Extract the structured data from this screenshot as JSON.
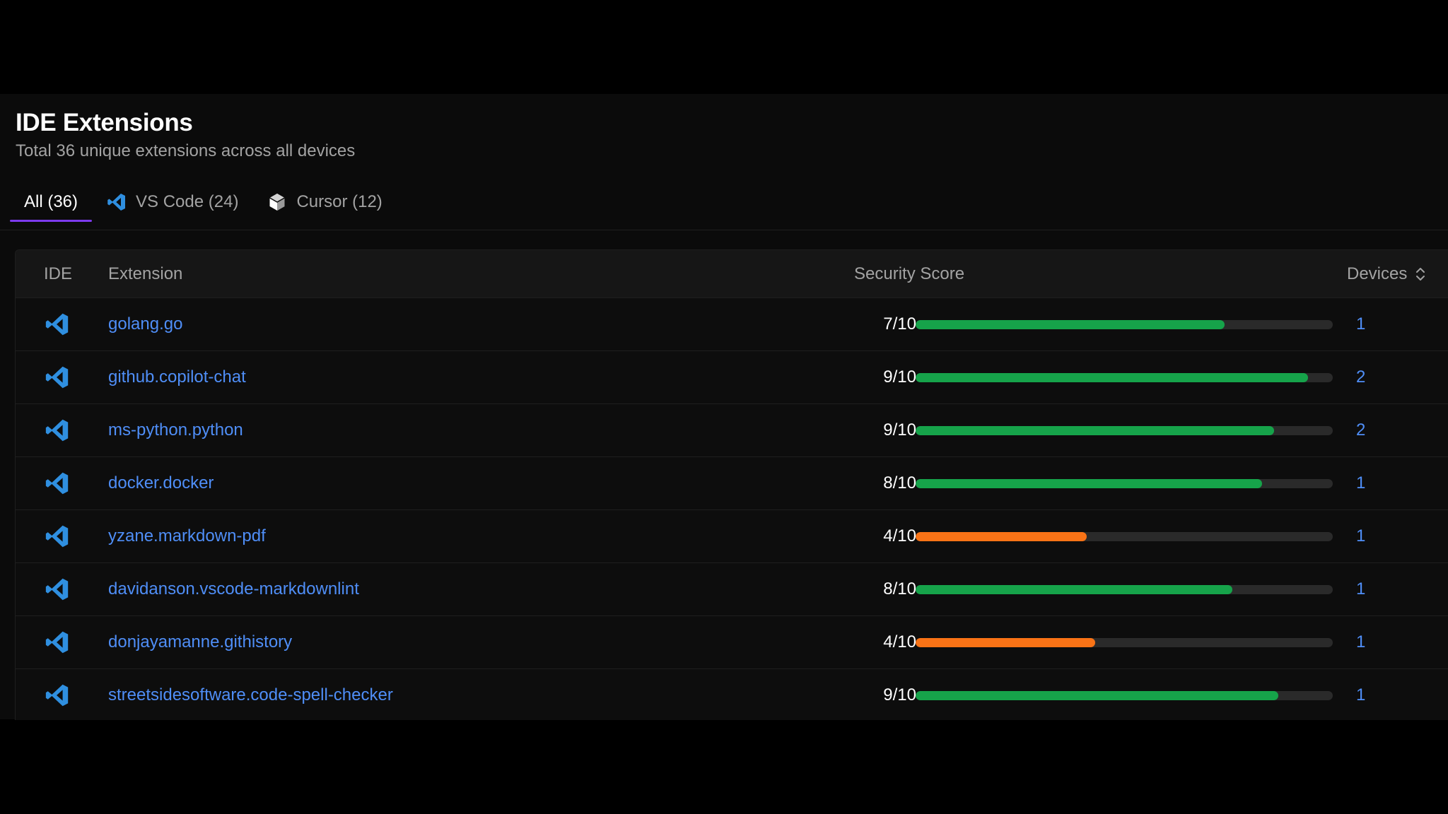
{
  "page": {
    "title": "IDE Extensions",
    "subtitle": "Total 36 unique extensions across all devices"
  },
  "tabs": [
    {
      "label": "All (36)",
      "icon": null,
      "active": true
    },
    {
      "label": "VS Code (24)",
      "icon": "vscode-icon",
      "active": false
    },
    {
      "label": "Cursor (12)",
      "icon": "cursor-icon",
      "active": false
    }
  ],
  "table": {
    "headers": {
      "ide": "IDE",
      "extension": "Extension",
      "security_score": "Security Score",
      "devices": "Devices"
    },
    "devices_sort_icon": "sort-icon",
    "rows": [
      {
        "ide_icon": "vscode-icon",
        "extension": "golang.go",
        "score_text": "7/10",
        "score": 7.4,
        "devices": "1"
      },
      {
        "ide_icon": "vscode-icon",
        "extension": "github.copilot-chat",
        "score_text": "9/10",
        "score": 9.4,
        "devices": "2"
      },
      {
        "ide_icon": "vscode-icon",
        "extension": "ms-python.python",
        "score_text": "9/10",
        "score": 8.6,
        "devices": "2"
      },
      {
        "ide_icon": "vscode-icon",
        "extension": "docker.docker",
        "score_text": "8/10",
        "score": 8.3,
        "devices": "1"
      },
      {
        "ide_icon": "vscode-icon",
        "extension": "yzane.markdown-pdf",
        "score_text": "4/10",
        "score": 4.1,
        "devices": "1"
      },
      {
        "ide_icon": "vscode-icon",
        "extension": "davidanson.vscode-markdownlint",
        "score_text": "8/10",
        "score": 7.6,
        "devices": "1"
      },
      {
        "ide_icon": "vscode-icon",
        "extension": "donjayamanne.githistory",
        "score_text": "4/10",
        "score": 4.3,
        "devices": "1"
      },
      {
        "ide_icon": "vscode-icon",
        "extension": "streetsidesoftware.code-spell-checker",
        "score_text": "9/10",
        "score": 8.7,
        "devices": "1"
      }
    ]
  },
  "colors": {
    "accent": "#7c3aed",
    "link": "#4f8ef7",
    "score_good": "#16a34a",
    "score_warn": "#f97316",
    "track": "#2a2a2a",
    "vscode_blue": "#2f8fe0"
  }
}
